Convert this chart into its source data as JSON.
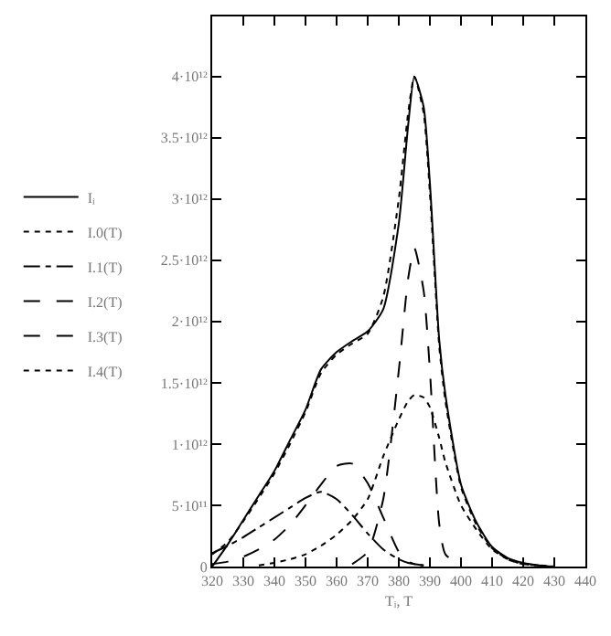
{
  "chart_data": {
    "type": "line",
    "xlabel": "Tᵢ, T",
    "x": [
      320,
      325,
      330,
      335,
      340,
      345,
      350,
      355,
      360,
      365,
      370,
      375,
      380,
      383,
      385,
      388,
      390,
      393,
      395,
      400,
      405,
      410,
      415,
      420,
      425,
      430
    ],
    "series": [
      {
        "name": "Iᵢ",
        "color": "#000000",
        "line_style": "solid",
        "values": [
          0,
          180000000000.0,
          380000000000.0,
          580000000000.0,
          780000000000.0,
          1030000000000.0,
          1280000000000.0,
          1610000000000.0,
          1750000000000.0,
          1840000000000.0,
          1920000000000.0,
          2100000000000.0,
          2800000000000.0,
          3600000000000.0,
          4000000000000.0,
          3750000000000.0,
          3130000000000.0,
          1850000000000.0,
          1400000000000.0,
          670000000000.0,
          360000000000.0,
          160000000000.0,
          70000000000.0,
          30000000000.0,
          10000000000.0,
          0
        ]
      },
      {
        "name": "I.0(T)",
        "color": "#000000",
        "line_style": "dotted",
        "values": [
          100000000000.0,
          200000000000.0,
          370000000000.0,
          560000000000.0,
          760000000000.0,
          1000000000000.0,
          1260000000000.0,
          1580000000000.0,
          1730000000000.0,
          1820000000000.0,
          1900000000000.0,
          2200000000000.0,
          3000000000000.0,
          3700000000000.0,
          4000000000000.0,
          3700000000000.0,
          3050000000000.0,
          1800000000000.0,
          1350000000000.0,
          650000000000.0,
          340000000000.0,
          150000000000.0,
          60000000000.0,
          20000000000.0,
          10000000000.0,
          0
        ]
      },
      {
        "name": "I.1(T)",
        "color": "#000000",
        "line_style": "dashdot",
        "x": [
          320,
          325,
          330,
          335,
          340,
          345,
          350,
          355,
          360,
          365,
          370,
          375,
          380,
          383,
          385,
          388
        ],
        "values": [
          110000000000.0,
          170000000000.0,
          240000000000.0,
          320000000000.0,
          400000000000.0,
          480000000000.0,
          560000000000.0,
          610000000000.0,
          550000000000.0,
          420000000000.0,
          270000000000.0,
          140000000000.0,
          60000000000.0,
          30000000000.0,
          20000000000.0,
          10000000000.0
        ]
      },
      {
        "name": "I.2(T)",
        "color": "#000000",
        "line_style": "dashed",
        "x": [
          320,
          325,
          330,
          335,
          340,
          345,
          350,
          355,
          360,
          365,
          370,
          375,
          380,
          383,
          385,
          388
        ],
        "values": [
          20000000000.0,
          40000000000.0,
          80000000000.0,
          140000000000.0,
          220000000000.0,
          340000000000.0,
          500000000000.0,
          670000000000.0,
          820000000000.0,
          840000000000.0,
          680000000000.0,
          400000000000.0,
          120000000000.0,
          40000000000.0,
          20000000000.0,
          10000000000.0
        ]
      },
      {
        "name": "I.3(T)",
        "color": "#000000",
        "line_style": "dashed",
        "x": [
          365,
          370,
          375,
          380,
          383,
          385,
          388,
          390,
          393,
          395,
          400
        ],
        "values": [
          20000000000.0,
          120000000000.0,
          550000000000.0,
          1600000000000.0,
          2350000000000.0,
          2600000000000.0,
          2250000000000.0,
          1600000000000.0,
          350000000000.0,
          100000000000.0,
          10000000000.0
        ]
      },
      {
        "name": "I.4(T)",
        "color": "#000000",
        "line_style": "dotted",
        "x": [
          335,
          340,
          345,
          350,
          355,
          360,
          365,
          370,
          375,
          380,
          383,
          385,
          388,
          390,
          393,
          395,
          400,
          405,
          410,
          415,
          420,
          425
        ],
        "values": [
          10000000000.0,
          30000000000.0,
          60000000000.0,
          100000000000.0,
          170000000000.0,
          260000000000.0,
          380000000000.0,
          550000000000.0,
          900000000000.0,
          1200000000000.0,
          1350000000000.0,
          1400000000000.0,
          1380000000000.0,
          1300000000000.0,
          1050000000000.0,
          850000000000.0,
          500000000000.0,
          300000000000.0,
          140000000000.0,
          60000000000.0,
          20000000000.0,
          10000000000.0
        ]
      }
    ],
    "xlim": [
      320,
      440
    ],
    "xticks": [
      320,
      330,
      340,
      350,
      360,
      370,
      380,
      390,
      400,
      410,
      420,
      430,
      440
    ],
    "ylim": [
      0,
      4490000000000.0
    ],
    "yticks": [
      0,
      {
        "value": 500000000000.0,
        "label": "5·10¹¹"
      },
      {
        "value": 1000000000000.0,
        "label": "1·10¹²"
      },
      {
        "value": 1500000000000.0,
        "label": "1.5·10¹²"
      },
      {
        "value": 2000000000000.0,
        "label": "2·10¹²"
      },
      {
        "value": 2500000000000.0,
        "label": "2.5·10¹²"
      },
      {
        "value": 3000000000000.0,
        "label": "3·10¹²"
      },
      {
        "value": 3500000000000.0,
        "label": "3.5·10¹²"
      },
      {
        "value": 4000000000000.0,
        "label": "4·10¹²"
      }
    ],
    "legend": "left",
    "marker": "none"
  }
}
